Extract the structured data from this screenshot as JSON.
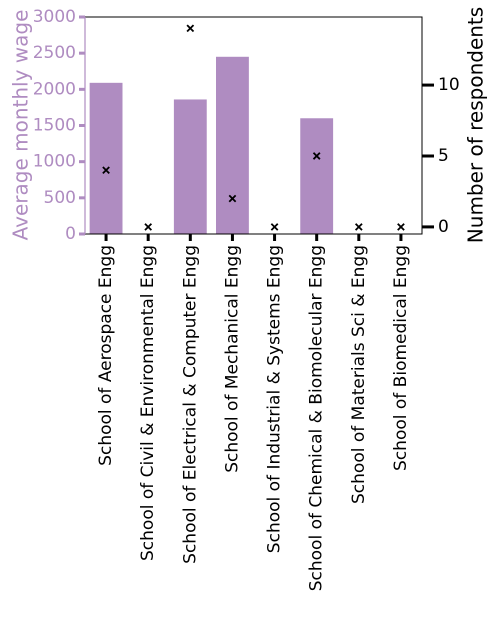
{
  "chart_data": {
    "type": "bar",
    "categories": [
      "School of Aerospace Engg",
      "School of Civil & Environmental Engg",
      "School of Electrical & Computer Engg",
      "School of Mechanical Engg",
      "School of Industrial & Systems Engg",
      "School of Chemical & Biomolecular Engg",
      "School of Materials Sci & Engg",
      "School of Biomedical Engg"
    ],
    "series": [
      {
        "axis": "left",
        "type": "bar",
        "values": [
          2090,
          0,
          1860,
          2450,
          0,
          1600,
          0,
          0
        ],
        "color": "#af8cc1"
      },
      {
        "axis": "right",
        "type": "scatter",
        "marker": "x",
        "values": [
          4,
          0,
          14,
          2,
          0,
          5,
          0,
          0
        ],
        "color": "#000000"
      }
    ],
    "ylabel": "Average monthly wage",
    "ylabel_right": "Number of respondents",
    "ylim": [
      0,
      3000
    ],
    "ylim_right": [
      -0.5,
      14.8
    ],
    "yticks": [
      "0",
      "500",
      "1000",
      "1500",
      "2000",
      "2500",
      "3000"
    ],
    "yticks_right": [
      "0",
      "5",
      "10"
    ],
    "grid": false,
    "legend": "none"
  }
}
